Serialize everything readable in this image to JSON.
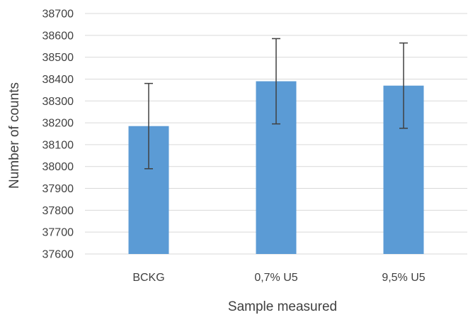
{
  "chart_data": {
    "type": "bar",
    "title": "",
    "xlabel": "Sample measured",
    "ylabel": "Number of counts",
    "categories": [
      "BCKG",
      "0,7% U5",
      "9,5% U5"
    ],
    "values": [
      38185,
      38390,
      38370
    ],
    "error": [
      195,
      195,
      195
    ],
    "ylim": [
      37600,
      38700
    ],
    "yticks": [
      37600,
      37700,
      37800,
      37900,
      38000,
      38100,
      38200,
      38300,
      38400,
      38500,
      38600,
      38700
    ],
    "grid": true,
    "legend": "none",
    "bar_color": "#5b9bd5",
    "errorbar_color": "#404040",
    "grid_color": "#d9d9d9",
    "text_color": "#404040"
  }
}
